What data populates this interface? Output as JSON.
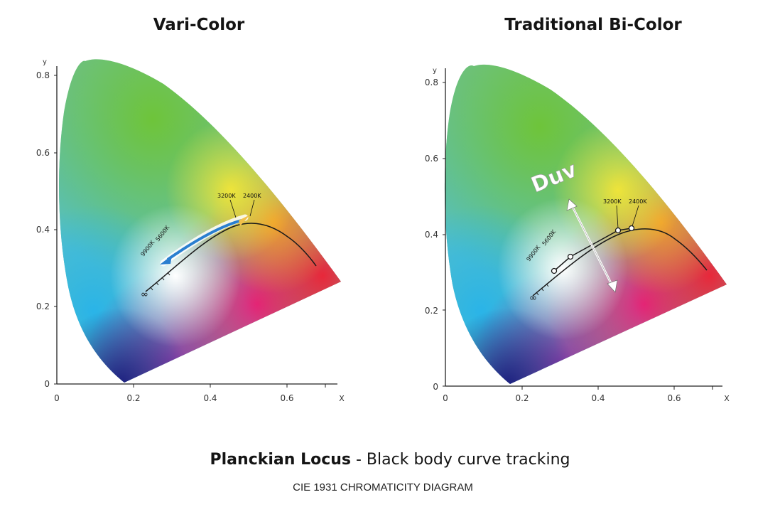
{
  "panels": [
    {
      "title": "Vari-Color",
      "y_axis_label": "y",
      "x_axis_label": "X",
      "y_ticks": [
        "0",
        "0.2",
        "0.4",
        "0.6",
        "0.8"
      ],
      "x_ticks": [
        "0",
        "0.2",
        "0.4",
        "0.6"
      ],
      "temperature_labels": [
        "9900K",
        "5600K",
        "3200K",
        "2400K"
      ],
      "infinity_symbol": "∞"
    },
    {
      "title": "Traditional Bi-Color",
      "y_axis_label": "y",
      "x_axis_label": "X",
      "y_ticks": [
        "0",
        "0.2",
        "0.4",
        "0.6",
        "0.8"
      ],
      "x_ticks": [
        "0",
        "0.2",
        "0.4",
        "0.6"
      ],
      "temperature_labels": [
        "9900K",
        "5600K",
        "3200K",
        "2400K"
      ],
      "infinity_symbol": "∞",
      "duv_label": "Duv"
    }
  ],
  "footer": {
    "title_bold": "Planckian Locus",
    "title_rest": " - Black body curve tracking",
    "subtitle": "CIE 1931 CHROMATICITY DIAGRAM"
  },
  "colors": {
    "green": "#6cc23a",
    "cyan": "#2ab8e6",
    "blue": "#1a1f8a",
    "magenta": "#e0237a",
    "red": "#e62a3a",
    "orange": "#f2912a",
    "yellow": "#ece43a",
    "arrow_blue": "#2a7fd0"
  }
}
